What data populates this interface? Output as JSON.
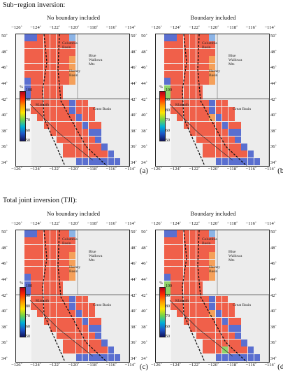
{
  "sections": {
    "top_title": "Sub−region inversion:",
    "bottom_title": "Total joint inversion (TJI):"
  },
  "columns": {
    "left": "No boundary included",
    "right": "Boundary included"
  },
  "axes": {
    "lon_ticks": [
      "−126˚",
      "−124˚",
      "−122˚",
      "−120˚",
      "−118˚",
      "−116˚",
      "−114˚"
    ],
    "lat_ticks": [
      "50˚",
      "48˚",
      "46˚",
      "44˚",
      "42˚",
      "40˚",
      "38˚",
      "36˚",
      "34˚"
    ]
  },
  "colorbar": {
    "unit": "%",
    "labels": [
      "100",
      "90",
      "80",
      "70",
      "60",
      "50"
    ]
  },
  "regions": {
    "columbia": "Columbia\nBasin",
    "blue": "Blue\nWallowa\nMts",
    "harney": "Harney\nBasin",
    "great": "Great Basin",
    "klamath": "Klamath"
  },
  "panels": [
    {
      "letter": "(a)"
    },
    {
      "letter": "(b)"
    },
    {
      "letter": "(c)"
    },
    {
      "letter": "(d)"
    }
  ],
  "colors": {
    "red": "#f0604a",
    "orange": "#f5a05a",
    "yellow": "#e8e15a",
    "green": "#8fd46a",
    "blue": "#5a6fd0",
    "lightblue": "#8cb4e6"
  }
}
